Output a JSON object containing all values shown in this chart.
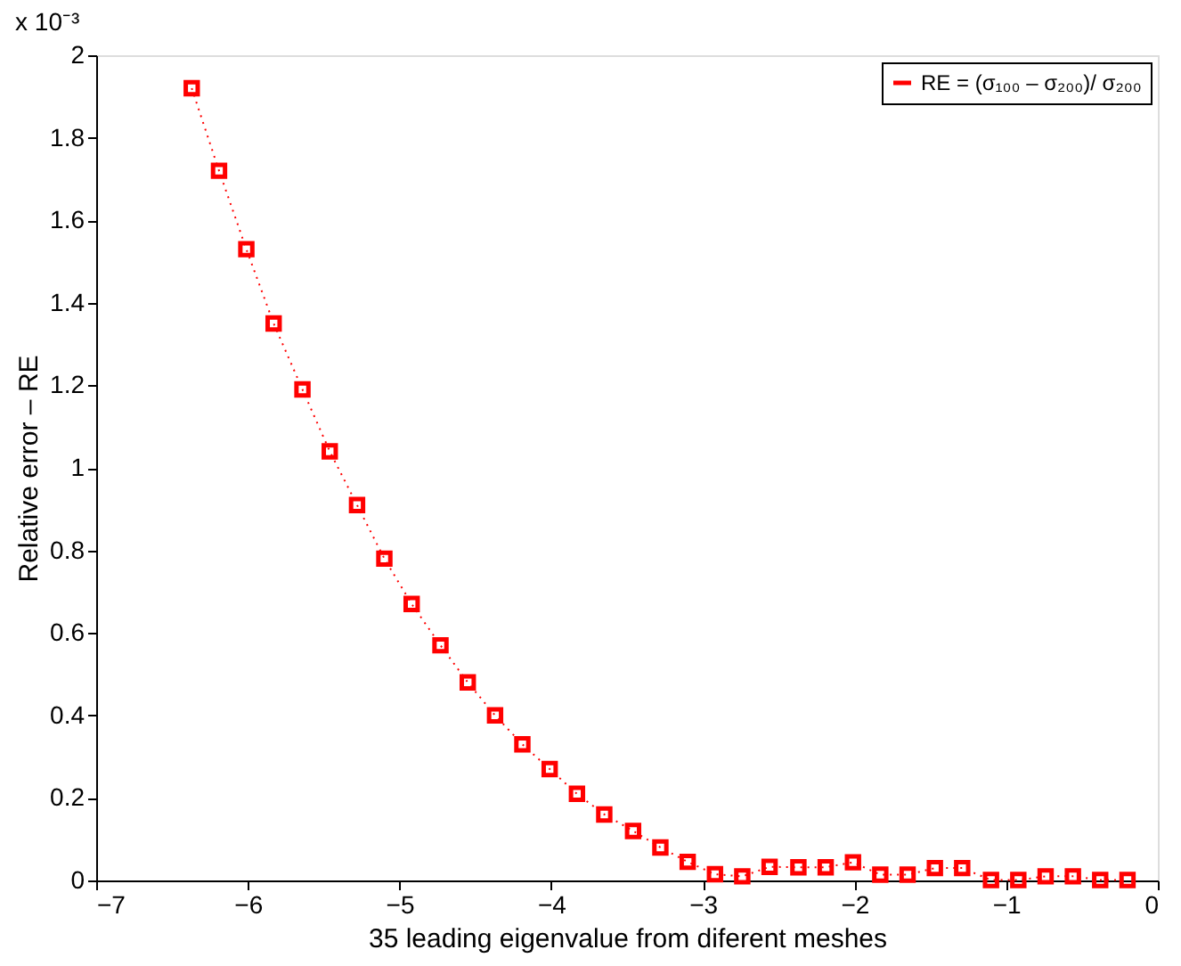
{
  "chart_data": {
    "type": "line",
    "xlabel": "35 leading eigenvalue from diferent meshes",
    "ylabel": "Relative error – RE",
    "annotations": [
      "x 10⁻³"
    ],
    "x": [
      -6.37,
      -6.19,
      -6.01,
      -5.83,
      -5.64,
      -5.46,
      -5.28,
      -5.1,
      -4.92,
      -4.73,
      -4.55,
      -4.37,
      -4.19,
      -4.01,
      -3.83,
      -3.65,
      -3.46,
      -3.28,
      -3.1,
      -2.92,
      -2.74,
      -2.56,
      -2.37,
      -2.19,
      -2.01,
      -1.83,
      -1.65,
      -1.47,
      -1.29,
      -1.1,
      -0.92,
      -0.74,
      -0.56,
      -0.38,
      -0.2
    ],
    "series": [
      {
        "name": "RE = (σ₁₀₀ – σ₂₀₀)/ σ₂₀₀",
        "color": "#ff0000",
        "values": [
          1.92,
          1.72,
          1.53,
          1.35,
          1.19,
          1.04,
          0.91,
          0.78,
          0.67,
          0.57,
          0.48,
          0.4,
          0.33,
          0.27,
          0.21,
          0.16,
          0.12,
          0.08,
          0.045,
          0.015,
          0.01,
          0.033,
          0.032,
          0.032,
          0.044,
          0.014,
          0.014,
          0.03,
          0.03,
          0.001,
          0.001,
          0.01,
          0.01,
          0.001,
          0.001
        ]
      }
    ],
    "xlim": [
      -7,
      0
    ],
    "xticks": [
      -7,
      -6,
      -5,
      -4,
      -3,
      -2,
      -1,
      0
    ],
    "ylim": [
      0,
      2
    ],
    "yticks": [
      0,
      0.2,
      0.4,
      0.6,
      0.8,
      1,
      1.2,
      1.4,
      1.6,
      1.8,
      2
    ],
    "grid": false,
    "legend": "top right",
    "marker": "square",
    "line_style": "dotted"
  }
}
